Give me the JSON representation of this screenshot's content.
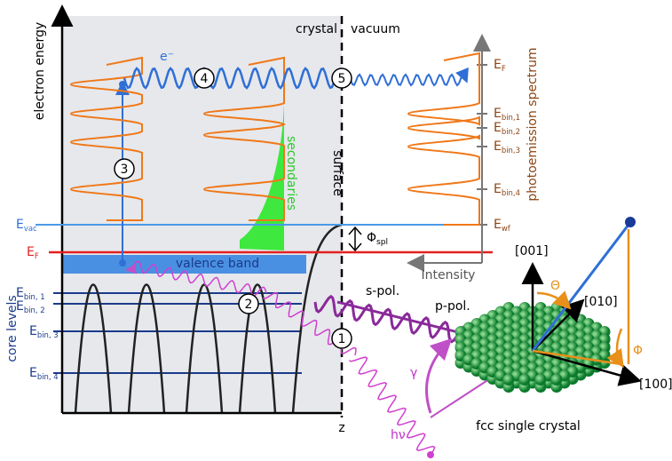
{
  "regions": {
    "crystal": "crystal",
    "vacuum": "vacuum",
    "surface": "surface"
  },
  "axis": {
    "energy": "electron energy",
    "core_levels": "core levels",
    "z": "z"
  },
  "steps": [
    "1",
    "2",
    "3",
    "4",
    "5"
  ],
  "electron": "e⁻",
  "left_levels": [
    {
      "main": "E",
      "sub": "vac"
    },
    {
      "main": "E",
      "sub": "F"
    },
    {
      "main": "E",
      "sub": "bin, 1"
    },
    {
      "main": "E",
      "sub": "bin, 2"
    },
    {
      "main": "E",
      "sub": "bin, 3"
    },
    {
      "main": "E",
      "sub": "bin, 4"
    }
  ],
  "valence_band": "valence band",
  "secondaries": "secondaries",
  "work_function": {
    "main": "Φ",
    "sub": "spl"
  },
  "spectrum": {
    "title": "photoemission spectrum",
    "intensity": "Intensity",
    "levels": [
      {
        "main": "E",
        "sub": "F"
      },
      {
        "main": "E",
        "sub": "bin,1"
      },
      {
        "main": "E",
        "sub": "bin,2"
      },
      {
        "main": "E",
        "sub": "bin,3"
      },
      {
        "main": "E",
        "sub": "bin,4"
      },
      {
        "main": "E",
        "sub": "wf"
      }
    ]
  },
  "light": {
    "photon": "hν",
    "s_pol": "s-pol.",
    "p_pol": "p-pol.",
    "angle": "γ"
  },
  "crystal": {
    "label": "fcc single crystal",
    "directions": [
      "[001]",
      "[010]",
      "[100]"
    ],
    "theta": "Θ",
    "phi": "Φ"
  }
}
